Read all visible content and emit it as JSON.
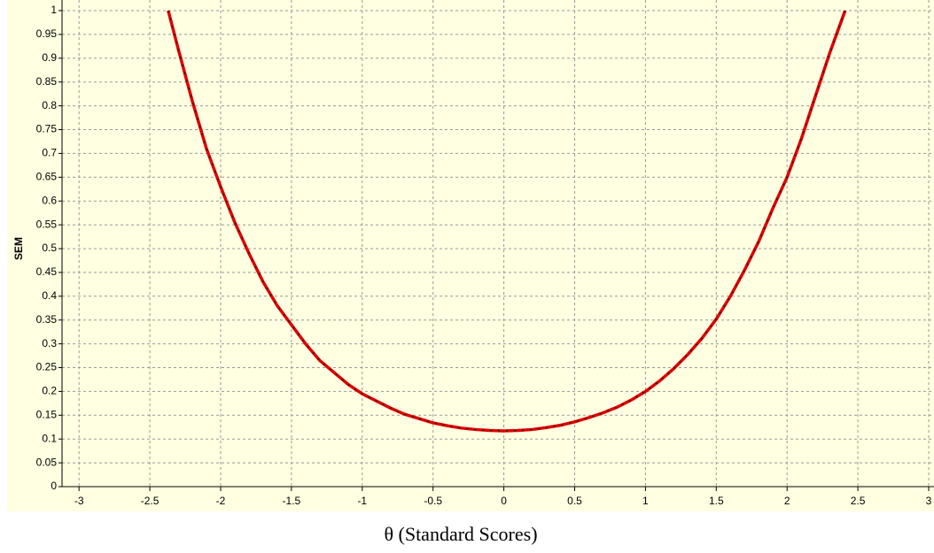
{
  "chart_data": {
    "type": "line",
    "ylabel": "SEM",
    "xlabel": "θ (Standard Scores)",
    "xlim": [
      -3.12,
      3.0
    ],
    "ylim": [
      0,
      1
    ],
    "xticks": [
      -3,
      -2.5,
      -2,
      -1.5,
      -1,
      -0.5,
      0,
      0.5,
      1,
      1.5,
      2,
      2.5,
      3
    ],
    "yticks": [
      0,
      0.05,
      0.1,
      0.15,
      0.2,
      0.25,
      0.3,
      0.35,
      0.4,
      0.45,
      0.5,
      0.55,
      0.6,
      0.65,
      0.7,
      0.75,
      0.8,
      0.85,
      0.9,
      0.95,
      1
    ],
    "grid": true,
    "series": [
      {
        "color": "#e00000",
        "x": [
          -2.37,
          -2.3,
          -2.2,
          -2.1,
          -2.0,
          -1.9,
          -1.8,
          -1.7,
          -1.6,
          -1.5,
          -1.4,
          -1.3,
          -1.2,
          -1.1,
          -1.0,
          -0.9,
          -0.8,
          -0.7,
          -0.6,
          -0.5,
          -0.4,
          -0.3,
          -0.2,
          -0.1,
          0,
          0.1,
          0.2,
          0.3,
          0.4,
          0.5,
          0.6,
          0.7,
          0.8,
          0.9,
          1.0,
          1.1,
          1.2,
          1.3,
          1.4,
          1.5,
          1.6,
          1.7,
          1.8,
          1.9,
          2.0,
          2.1,
          2.2,
          2.3,
          2.41
        ],
        "values": [
          1.0,
          0.92,
          0.81,
          0.71,
          0.63,
          0.555,
          0.49,
          0.43,
          0.38,
          0.34,
          0.3,
          0.265,
          0.24,
          0.215,
          0.195,
          0.18,
          0.165,
          0.152,
          0.143,
          0.134,
          0.128,
          0.123,
          0.12,
          0.118,
          0.117,
          0.118,
          0.12,
          0.124,
          0.129,
          0.136,
          0.145,
          0.155,
          0.167,
          0.182,
          0.2,
          0.222,
          0.248,
          0.278,
          0.312,
          0.352,
          0.4,
          0.455,
          0.515,
          0.585,
          0.65,
          0.73,
          0.82,
          0.91,
          1.0
        ]
      }
    ]
  }
}
